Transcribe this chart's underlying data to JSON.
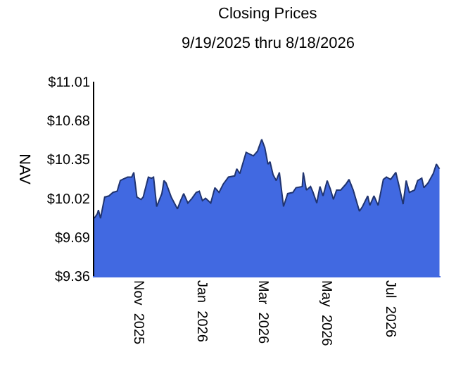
{
  "chart_data": {
    "type": "area",
    "title": "Closing Prices",
    "subtitle": "9/19/2025 thru 8/18/2026",
    "ylabel": "NAV",
    "x": [
      "2025-09-19",
      "2025-09-22",
      "2025-09-23",
      "2025-09-25",
      "2025-09-29",
      "2025-10-03",
      "2025-10-07",
      "2025-10-11",
      "2025-10-14",
      "2025-10-16",
      "2025-10-21",
      "2025-10-25",
      "2025-10-27",
      "2025-10-30",
      "2025-11-03",
      "2025-11-05",
      "2025-11-10",
      "2025-11-13",
      "2025-11-15",
      "2025-11-18",
      "2025-11-23",
      "2025-11-25",
      "2025-11-27",
      "2025-12-02",
      "2025-12-08",
      "2025-12-11",
      "2025-12-14",
      "2025-12-18",
      "2025-12-22",
      "2025-12-26",
      "2025-12-29",
      "2026-01-01",
      "2026-01-04",
      "2026-01-09",
      "2026-01-13",
      "2026-01-17",
      "2026-01-21",
      "2026-01-26",
      "2026-02-01",
      "2026-02-03",
      "2026-02-06",
      "2026-02-12",
      "2026-02-19",
      "2026-02-23",
      "2026-02-27",
      "2026-03-02",
      "2026-03-05",
      "2026-03-07",
      "2026-03-10",
      "2026-03-13",
      "2026-03-16",
      "2026-03-20",
      "2026-03-24",
      "2026-03-29",
      "2026-04-01",
      "2026-04-07",
      "2026-04-08",
      "2026-04-11",
      "2026-04-15",
      "2026-04-17",
      "2026-04-21",
      "2026-04-24",
      "2026-04-27",
      "2026-05-01",
      "2026-05-04",
      "2026-05-07",
      "2026-05-10",
      "2026-05-14",
      "2026-05-19",
      "2026-05-22",
      "2026-05-26",
      "2026-06-01",
      "2026-06-04",
      "2026-06-09",
      "2026-06-11",
      "2026-06-15",
      "2026-06-19",
      "2026-06-24",
      "2026-06-27",
      "2026-07-01",
      "2026-07-06",
      "2026-07-09",
      "2026-07-13",
      "2026-07-16",
      "2026-07-19",
      "2026-07-24",
      "2026-07-27",
      "2026-07-31",
      "2026-08-02",
      "2026-08-06",
      "2026-08-11",
      "2026-08-14",
      "2026-08-17"
    ],
    "series": [
      {
        "color": "#4169e1",
        "values": [
          9.85,
          9.89,
          9.92,
          9.85,
          10.03,
          10.04,
          10.07,
          10.08,
          10.17,
          10.18,
          10.2,
          10.2,
          10.24,
          10.03,
          10.01,
          10.03,
          10.2,
          10.19,
          10.2,
          9.95,
          10.06,
          10.17,
          10.15,
          10.03,
          9.93,
          10.0,
          10.06,
          9.98,
          10.02,
          10.07,
          10.08,
          10.0,
          10.02,
          9.98,
          10.11,
          10.07,
          10.14,
          10.2,
          10.21,
          10.27,
          10.23,
          10.41,
          10.38,
          10.42,
          10.52,
          10.45,
          10.31,
          10.33,
          10.22,
          10.17,
          10.24,
          9.95,
          10.06,
          10.07,
          10.11,
          10.12,
          10.24,
          10.09,
          10.12,
          10.08,
          9.98,
          10.12,
          10.04,
          10.17,
          10.1,
          10.01,
          10.09,
          10.09,
          10.14,
          10.18,
          10.09,
          9.91,
          9.95,
          10.04,
          9.96,
          10.04,
          9.96,
          10.18,
          10.2,
          10.18,
          10.24,
          10.13,
          9.97,
          10.17,
          10.07,
          10.09,
          10.17,
          10.19,
          10.11,
          10.15,
          10.23,
          10.31,
          10.27
        ]
      }
    ],
    "xlim": [
      "2025-09-19",
      "2026-08-18"
    ],
    "xticks": [
      {
        "value": "2025-11-01",
        "label": "Nov  2025"
      },
      {
        "value": "2026-01-01",
        "label": "Jan  2026"
      },
      {
        "value": "2026-03-01",
        "label": "Mar  2026"
      },
      {
        "value": "2026-05-01",
        "label": "May  2026"
      },
      {
        "value": "2026-07-01",
        "label": "Jul  2026"
      }
    ],
    "ylim": [
      9.36,
      11.01
    ],
    "yticks": [
      {
        "value": 9.36,
        "label": "$9.36"
      },
      {
        "value": 9.69,
        "label": "$9.69"
      },
      {
        "value": 10.02,
        "label": "$10.02"
      },
      {
        "value": 10.35,
        "label": "$10.35"
      },
      {
        "value": 10.68,
        "label": "$10.68"
      },
      {
        "value": 11.01,
        "label": "$11.01"
      }
    ],
    "tick_labels": [
      "x",
      "y"
    ]
  }
}
